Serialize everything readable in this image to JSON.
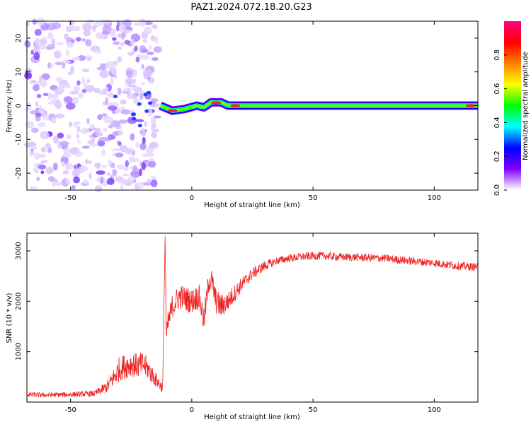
{
  "figure": {
    "title": "PAZ1.2024.072.18.20.G23"
  },
  "chart_data": [
    {
      "type": "heatmap",
      "title": "PAZ1.2024.072.18.20.G23",
      "xlabel": "Height of straight line (km)",
      "ylabel": "Frequency (Hz)",
      "xlim": [
        -68,
        118
      ],
      "ylim": [
        -25,
        25
      ],
      "xticks": [
        -50,
        0,
        50,
        100
      ],
      "yticks": [
        20,
        10,
        0,
        -10,
        -20
      ],
      "colorbar": {
        "label": "Normalized spectral amplitude",
        "range": [
          0,
          1
        ],
        "ticks": [
          0.0,
          0.2,
          0.4,
          0.6,
          0.8
        ],
        "colormap": [
          "#ffffff",
          "#7f00ff",
          "#0000ff",
          "#00ffff",
          "#00ff00",
          "#ffff00",
          "#ff7f00",
          "#ff0000",
          "#ff007f"
        ]
      },
      "noisy_region_xmax": -14,
      "carrier": {
        "points": [
          {
            "x": -13,
            "f": 0.0
          },
          {
            "x": -8,
            "f": -1.5
          },
          {
            "x": -3,
            "f": -1.0
          },
          {
            "x": 2,
            "f": 0.0
          },
          {
            "x": 5,
            "f": -0.5
          },
          {
            "x": 8,
            "f": 1.0
          },
          {
            "x": 12,
            "f": 1.0
          },
          {
            "x": 15,
            "f": 0.0
          },
          {
            "x": 20,
            "f": 0.0
          },
          {
            "x": 118,
            "f": 0.0
          }
        ],
        "hotspots": [
          {
            "x": -8,
            "f": -1.5
          },
          {
            "x": 10,
            "f": 0.8
          },
          {
            "x": 18,
            "f": 0.0
          },
          {
            "x": 115,
            "f": 0.0
          }
        ]
      }
    },
    {
      "type": "line",
      "xlabel": "Height of straight line (km)",
      "ylabel": "SNR (10 * v/v)",
      "xlim": [
        -68,
        118
      ],
      "ylim": [
        0,
        3350
      ],
      "xticks": [
        -50,
        0,
        50,
        100
      ],
      "yticks": [
        1000,
        2000,
        3000
      ],
      "color": "#ee2222",
      "series": [
        {
          "x": [
            -68,
            -60,
            -50,
            -40,
            -35,
            -32,
            -30,
            -28,
            -25,
            -22,
            -20,
            -18,
            -15,
            -12,
            -11,
            -10.5,
            -10,
            -9,
            -8,
            -5,
            0,
            3,
            5,
            7,
            8,
            10,
            12,
            15,
            20,
            25,
            30,
            35,
            40,
            45,
            50,
            55,
            60,
            70,
            80,
            90,
            100,
            110,
            118
          ],
          "y": [
            150,
            140,
            150,
            170,
            300,
            500,
            650,
            700,
            750,
            720,
            750,
            650,
            450,
            280,
            3300,
            1200,
            1500,
            1700,
            1900,
            2100,
            2000,
            2100,
            1600,
            2400,
            2450,
            2000,
            1900,
            2000,
            2300,
            2550,
            2700,
            2800,
            2850,
            2880,
            2900,
            2900,
            2880,
            2870,
            2850,
            2800,
            2760,
            2700,
            2680
          ],
          "noise": [
            50,
            50,
            50,
            60,
            120,
            200,
            250,
            250,
            250,
            250,
            250,
            220,
            150,
            100,
            0,
            200,
            250,
            250,
            250,
            250,
            250,
            250,
            250,
            250,
            250,
            250,
            250,
            200,
            150,
            120,
            100,
            80,
            80,
            80,
            80,
            80,
            80,
            80,
            80,
            80,
            80,
            80,
            80
          ]
        }
      ]
    }
  ]
}
